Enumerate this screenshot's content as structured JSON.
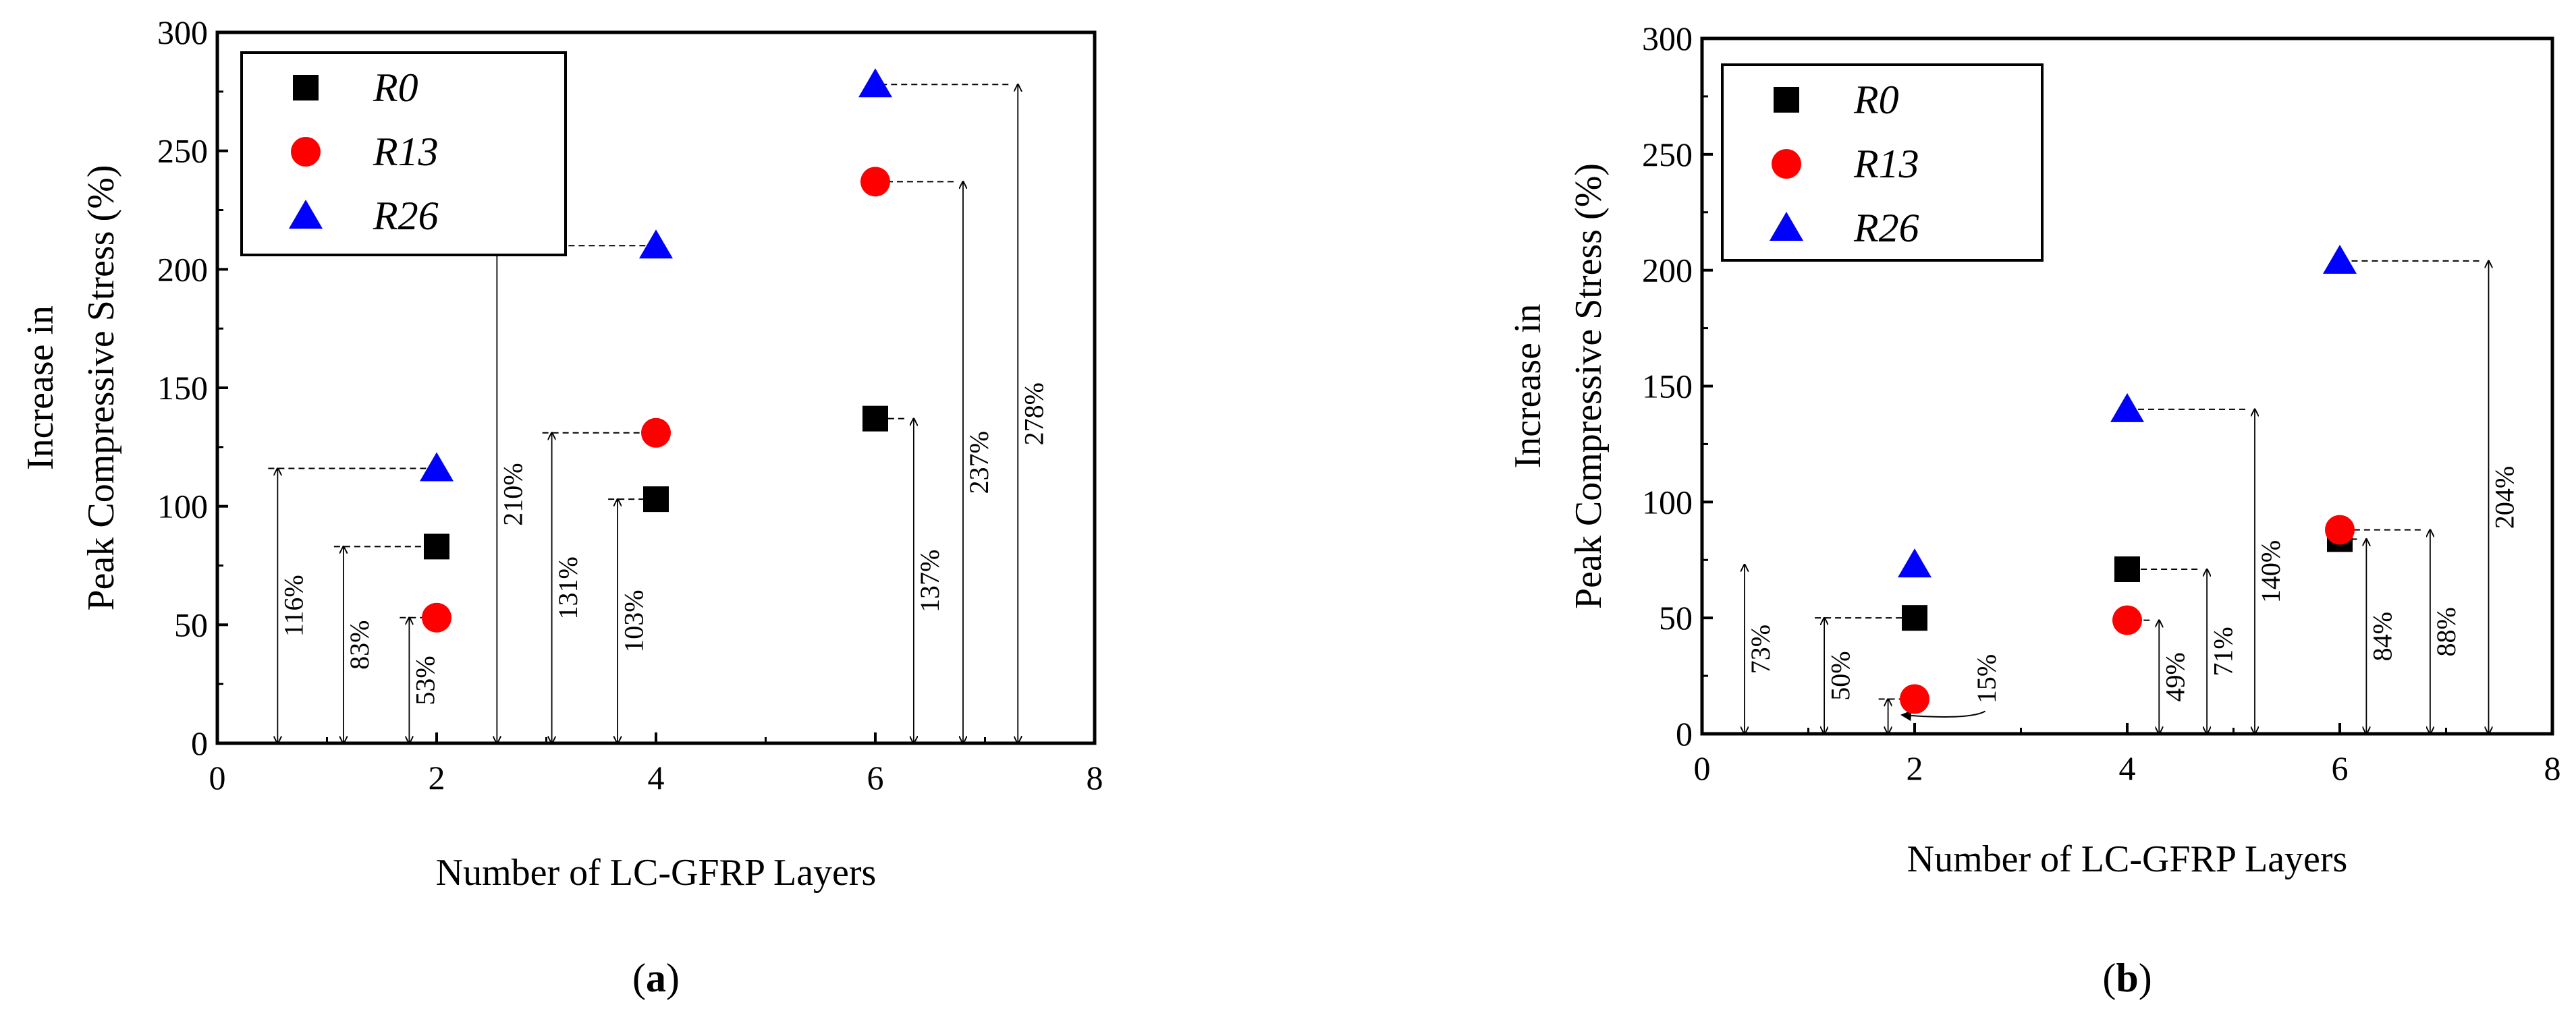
{
  "chart_data": [
    {
      "panel_label_letter": "a",
      "type": "scatter",
      "xlabel": "Number of LC-GFRP Layers",
      "ylabel_line1": "Increase in",
      "ylabel_line2": "Peak Compressive Stress (%)",
      "xlim": [
        0,
        8
      ],
      "ylim": [
        0,
        300
      ],
      "xticks": [
        0,
        2,
        4,
        6,
        8
      ],
      "yticks": [
        0,
        50,
        100,
        150,
        200,
        250,
        300
      ],
      "legend_position": "top-left",
      "series": [
        {
          "name": "R0",
          "marker": "square",
          "color": "#000000",
          "x": [
            2,
            4,
            6
          ],
          "y": [
            83,
            103,
            137
          ]
        },
        {
          "name": "R13",
          "marker": "circle",
          "color": "#ff0000",
          "x": [
            2,
            4,
            6
          ],
          "y": [
            53,
            131,
            237
          ]
        },
        {
          "name": "R26",
          "marker": "triangle",
          "color": "#0000ff",
          "x": [
            2,
            4,
            6
          ],
          "y": [
            116,
            210,
            278
          ]
        }
      ],
      "annotations": [
        {
          "text": "116%",
          "x": 0.55,
          "y": 116,
          "from_x": 2
        },
        {
          "text": "83%",
          "x": 1.15,
          "y": 83,
          "from_x": 2
        },
        {
          "text": "53%",
          "x": 1.75,
          "y": 53,
          "from_x": 2
        },
        {
          "text": "210%",
          "x": 2.55,
          "y": 210,
          "from_x": 4
        },
        {
          "text": "131%",
          "x": 3.05,
          "y": 131,
          "from_x": 4
        },
        {
          "text": "103%",
          "x": 3.65,
          "y": 103,
          "from_x": 4
        },
        {
          "text": "137%",
          "x": 6.35,
          "y": 137,
          "from_x": 6
        },
        {
          "text": "237%",
          "x": 6.8,
          "y": 237,
          "from_x": 6
        },
        {
          "text": "278%",
          "x": 7.3,
          "y": 278,
          "from_x": 6
        }
      ]
    },
    {
      "panel_label_letter": "b",
      "type": "scatter",
      "xlabel": "Number of LC-GFRP Layers",
      "ylabel_line1": "Increase in",
      "ylabel_line2": "Peak Compressive Stress (%)",
      "xlim": [
        0,
        8
      ],
      "ylim": [
        0,
        300
      ],
      "xticks": [
        0,
        2,
        4,
        6,
        8
      ],
      "yticks": [
        0,
        50,
        100,
        150,
        200,
        250,
        300
      ],
      "legend_position": "top-left",
      "series": [
        {
          "name": "R0",
          "marker": "square",
          "color": "#000000",
          "x": [
            2,
            4,
            6
          ],
          "y": [
            50,
            71,
            84
          ]
        },
        {
          "name": "R13",
          "marker": "circle",
          "color": "#ff0000",
          "x": [
            2,
            4,
            6
          ],
          "y": [
            15,
            49,
            88
          ]
        },
        {
          "name": "R26",
          "marker": "triangle",
          "color": "#0000ff",
          "x": [
            2,
            4,
            6
          ],
          "y": [
            73,
            140,
            204
          ]
        }
      ],
      "annotations": [
        {
          "text": "73%",
          "x": 0.4,
          "y": 73,
          "from_x": null
        },
        {
          "text": "50%",
          "x": 1.15,
          "y": 50,
          "from_x": 2
        },
        {
          "text": "15%",
          "x": 1.75,
          "y": 15,
          "from_x": 2,
          "callout": true
        },
        {
          "text": "49%",
          "x": 4.3,
          "y": 49,
          "from_x": 4
        },
        {
          "text": "71%",
          "x": 4.75,
          "y": 71,
          "from_x": 4
        },
        {
          "text": "140%",
          "x": 5.2,
          "y": 140,
          "from_x": 4
        },
        {
          "text": "84%",
          "x": 6.25,
          "y": 84,
          "from_x": 6
        },
        {
          "text": "88%",
          "x": 6.85,
          "y": 88,
          "from_x": 6
        },
        {
          "text": "204%",
          "x": 7.4,
          "y": 204,
          "from_x": 6
        }
      ]
    }
  ]
}
